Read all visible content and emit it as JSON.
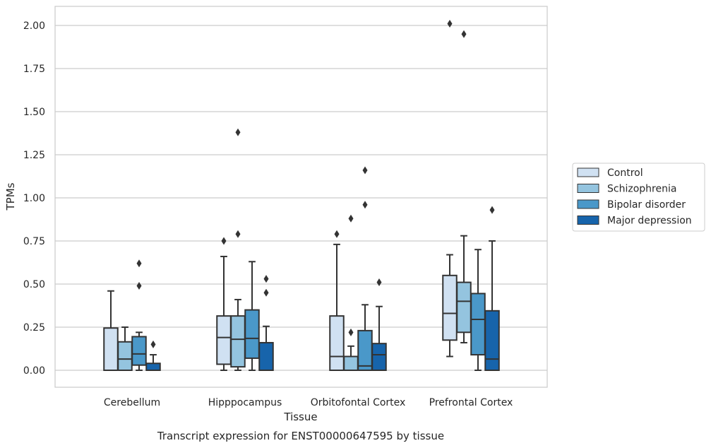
{
  "caption": "Transcript expression for ENST00000647595 by tissue",
  "chart_data": {
    "type": "boxplot",
    "xlabel": "Tissue",
    "ylabel": "TPMs",
    "ylim": [
      -0.1,
      2.12
    ],
    "yticks": [
      "0.00",
      "0.25",
      "0.50",
      "0.75",
      "1.00",
      "1.25",
      "1.50",
      "1.75",
      "2.00"
    ],
    "categories": [
      "Cerebellum",
      "Hipppocampus",
      "Orbitofontal Cortex",
      "Prefrontal Cortex"
    ],
    "grid": "horizontal",
    "legend_position": "right",
    "series": [
      {
        "name": "Control",
        "color": "#d0e1f2",
        "boxes": [
          {
            "wlo": 0.0,
            "q1": 0.0,
            "med": 0.0,
            "q3": 0.245,
            "whi": 0.46,
            "outliers": []
          },
          {
            "wlo": 0.0,
            "q1": 0.035,
            "med": 0.19,
            "q3": 0.315,
            "whi": 0.66,
            "outliers": [
              0.75
            ]
          },
          {
            "wlo": 0.0,
            "q1": 0.0,
            "med": 0.08,
            "q3": 0.315,
            "whi": 0.73,
            "outliers": [
              0.79
            ]
          },
          {
            "wlo": 0.08,
            "q1": 0.175,
            "med": 0.33,
            "q3": 0.55,
            "whi": 0.67,
            "outliers": [
              2.01
            ]
          }
        ]
      },
      {
        "name": "Schizophrenia",
        "color": "#94c4df",
        "boxes": [
          {
            "wlo": 0.0,
            "q1": 0.0,
            "med": 0.065,
            "q3": 0.165,
            "whi": 0.25,
            "outliers": []
          },
          {
            "wlo": 0.0,
            "q1": 0.02,
            "med": 0.18,
            "q3": 0.315,
            "whi": 0.41,
            "outliers": [
              0.79,
              1.38
            ]
          },
          {
            "wlo": 0.0,
            "q1": 0.0,
            "med": 0.0,
            "q3": 0.08,
            "whi": 0.14,
            "outliers": [
              0.22,
              0.88
            ]
          },
          {
            "wlo": 0.16,
            "q1": 0.22,
            "med": 0.4,
            "q3": 0.51,
            "whi": 0.78,
            "outliers": [
              1.95
            ]
          }
        ]
      },
      {
        "name": "Bipolar disorder",
        "color": "#4a98c9",
        "boxes": [
          {
            "wlo": 0.0,
            "q1": 0.03,
            "med": 0.095,
            "q3": 0.195,
            "whi": 0.22,
            "outliers": [
              0.49,
              0.62
            ]
          },
          {
            "wlo": 0.0,
            "q1": 0.07,
            "med": 0.185,
            "q3": 0.35,
            "whi": 0.63,
            "outliers": []
          },
          {
            "wlo": 0.0,
            "q1": 0.0,
            "med": 0.025,
            "q3": 0.23,
            "whi": 0.38,
            "outliers": [
              0.96,
              1.16
            ]
          },
          {
            "wlo": 0.0,
            "q1": 0.09,
            "med": 0.295,
            "q3": 0.445,
            "whi": 0.7,
            "outliers": []
          }
        ]
      },
      {
        "name": "Major depression",
        "color": "#1764ab",
        "boxes": [
          {
            "wlo": 0.0,
            "q1": 0.0,
            "med": 0.0,
            "q3": 0.04,
            "whi": 0.09,
            "outliers": [
              0.15
            ]
          },
          {
            "wlo": 0.0,
            "q1": 0.0,
            "med": 0.0,
            "q3": 0.16,
            "whi": 0.255,
            "outliers": [
              0.45,
              0.53
            ]
          },
          {
            "wlo": 0.0,
            "q1": 0.0,
            "med": 0.09,
            "q3": 0.155,
            "whi": 0.37,
            "outliers": [
              0.51
            ]
          },
          {
            "wlo": 0.0,
            "q1": 0.0,
            "med": 0.065,
            "q3": 0.345,
            "whi": 0.75,
            "outliers": [
              0.93
            ]
          }
        ]
      }
    ]
  }
}
